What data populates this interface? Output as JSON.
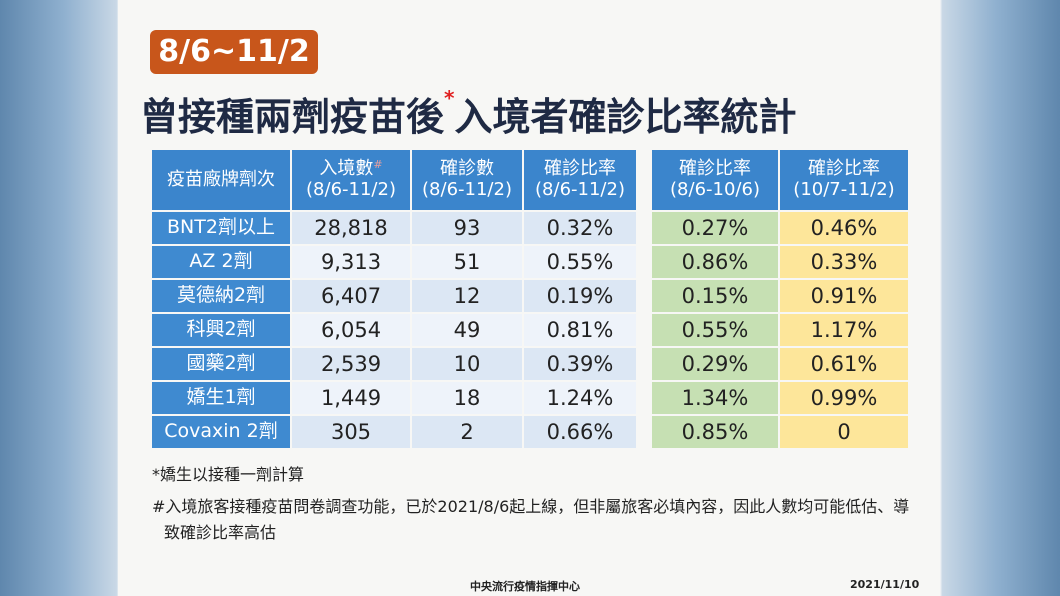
{
  "badge": "8/6~11/2",
  "title": {
    "before": "曾接種兩劑疫苗後",
    "mark": "*",
    "after": "入境者確診比率統計"
  },
  "table": {
    "headers": [
      {
        "line1": "疫苗廠牌劑次"
      },
      {
        "line1": "入境數",
        "mark": "#",
        "line2": "(8/6-11/2)"
      },
      {
        "line1": "確診數",
        "line2": "(8/6-11/2)"
      },
      {
        "line1": "確診比率",
        "line2": "(8/6-11/2)"
      },
      {
        "line1": "確診比率",
        "line2": "(8/6-10/6)"
      },
      {
        "line1": "確診比率",
        "line2": "(10/7-11/2)"
      }
    ],
    "rows": [
      [
        "BNT2劑以上",
        "28,818",
        "93",
        "0.32%",
        "0.27%",
        "0.46%"
      ],
      [
        "AZ 2劑",
        "9,313",
        "51",
        "0.55%",
        "0.86%",
        "0.33%"
      ],
      [
        "莫德納2劑",
        "6,407",
        "12",
        "0.19%",
        "0.15%",
        "0.91%"
      ],
      [
        "科興2劑",
        "6,054",
        "49",
        "0.81%",
        "0.55%",
        "1.17%"
      ],
      [
        "國藥2劑",
        "2,539",
        "10",
        "0.39%",
        "0.29%",
        "0.61%"
      ],
      [
        "嬌生1劑",
        "1,449",
        "18",
        "1.24%",
        "1.34%",
        "0.99%"
      ],
      [
        "Covaxin 2劑",
        "305",
        "2",
        "0.66%",
        "0.85%",
        "0"
      ]
    ]
  },
  "notes": [
    "*嬌生以接種一劑計算",
    "#入境旅客接種疫苗問卷調查功能，已於2021/8/6起上線，但非屬旅客必填內容，因此人數均可能低估、導致確診比率高估"
  ],
  "footer": {
    "source": "中央流行疫情指揮中心",
    "date": "2021/11/10"
  }
}
